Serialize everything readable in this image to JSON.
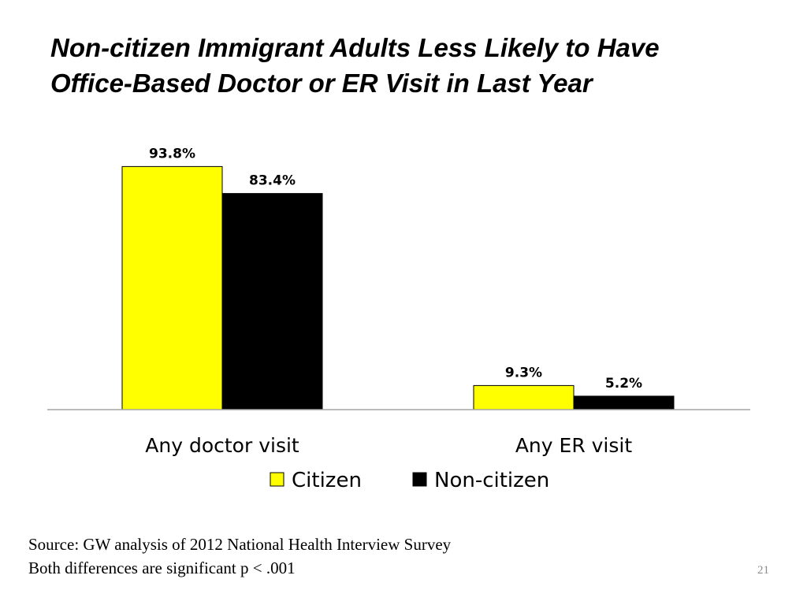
{
  "slide": {
    "title_line1": "Non-citizen Immigrant Adults Less Likely to Have",
    "title_line2": "Office-Based Doctor or ER Visit in Last Year",
    "source_line1": "Source: GW analysis of 2012 National Health Interview Survey",
    "source_line2": "Both differences are significant p < .001",
    "page_number": "21"
  },
  "chart_data": {
    "type": "bar",
    "title": "",
    "xlabel": "",
    "ylabel": "",
    "categories": [
      "Any doctor visit",
      "Any ER visit"
    ],
    "series": [
      {
        "name": "Citizen",
        "values": [
          93.8,
          9.3
        ],
        "labels": [
          "93.8%",
          "9.3%"
        ],
        "color": "#ffff00"
      },
      {
        "name": "Non-citizen",
        "values": [
          83.4,
          5.2
        ],
        "labels": [
          "83.4%",
          "5.2%"
        ],
        "color": "#000000"
      }
    ],
    "ylim": [
      0,
      100
    ],
    "grid": false,
    "legend": "bottom"
  }
}
